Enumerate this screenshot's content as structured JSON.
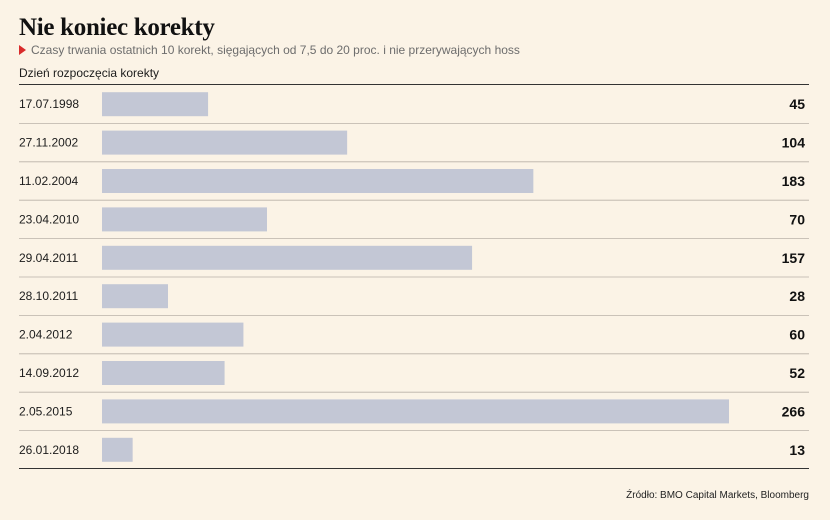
{
  "chart_data": {
    "type": "bar",
    "orientation": "horizontal",
    "title": "Nie koniec korekty",
    "subtitle": "Czasy trwania ostatnich 10 korekt, sięgających od 7,5 do 20 proc. i nie przerywających hoss",
    "category_header": "Dzień rozpoczęcia korekty",
    "categories": [
      "17.07.1998",
      "27.11.2002",
      "11.02.2004",
      "23.04.2010",
      "29.04.2011",
      "28.10.2011",
      "2.04.2012",
      "14.09.2012",
      "2.05.2015",
      "26.01.2018"
    ],
    "values": [
      45,
      104,
      183,
      70,
      157,
      28,
      60,
      52,
      266,
      13
    ],
    "xlim": [
      0,
      266
    ],
    "bar_color": "#c3c7d5",
    "accent_color": "#d92b2b",
    "source": "Źródło: BMO Capital Markets, Bloomberg"
  }
}
